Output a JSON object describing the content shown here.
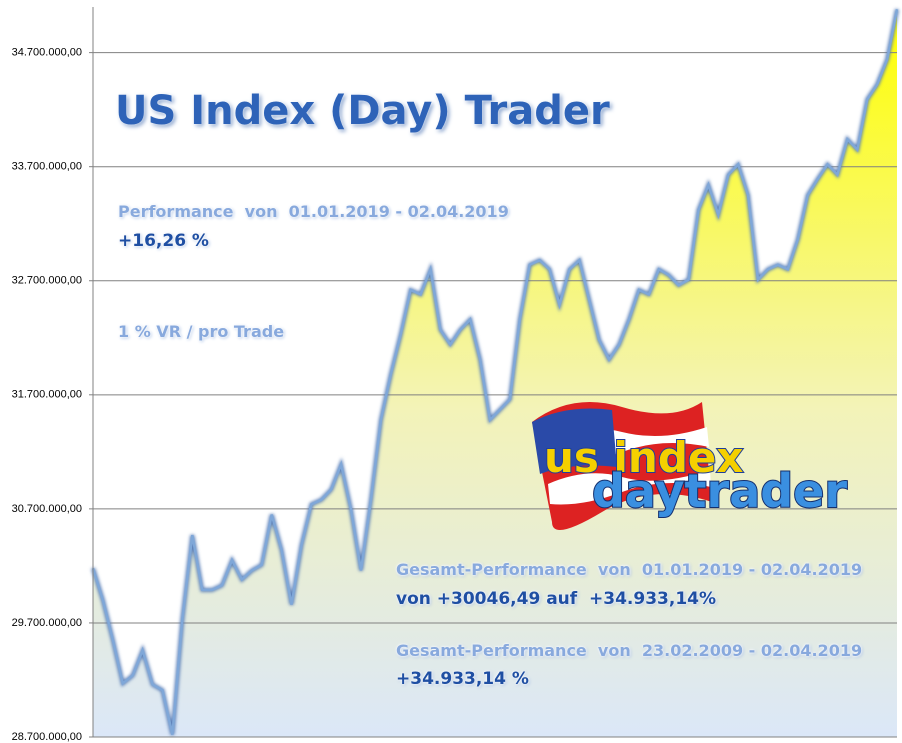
{
  "chart_data": {
    "type": "area",
    "title": "US Index (Day) Trader",
    "annotations": [
      "Performance  von  01.01.2019 - 02.04.2019",
      "+16,26 %",
      "1 % VR / pro Trade",
      "Gesamt-Performance  von  01.01.2019 - 02.04.2019",
      "von +30046,49 auf  +34.933,14%",
      "Gesamt-Performance  von  23.02.2009 - 02.04.2019",
      "+34.933,14 %"
    ],
    "logo": [
      "us index",
      "daytrader"
    ],
    "values": [
      30180000,
      29900000,
      29550000,
      29170000,
      29240000,
      29460000,
      29160000,
      29110000,
      28720000,
      29730000,
      30470000,
      29990000,
      29990000,
      30030000,
      30250000,
      30080000,
      30160000,
      30210000,
      30650000,
      30340000,
      29860000,
      30380000,
      30740000,
      30780000,
      30870000,
      31090000,
      30690000,
      30160000,
      30780000,
      31480000,
      31880000,
      32230000,
      32620000,
      32580000,
      32800000,
      32270000,
      32140000,
      32270000,
      32360000,
      32010000,
      31480000,
      31570000,
      31660000,
      32360000,
      32840000,
      32880000,
      32800000,
      32490000,
      32800000,
      32880000,
      32530000,
      32180000,
      32010000,
      32140000,
      32360000,
      32620000,
      32580000,
      32800000,
      32750000,
      32660000,
      32710000,
      33320000,
      33540000,
      33280000,
      33630000,
      33720000,
      33450000,
      32710000,
      32800000,
      32840000,
      32800000,
      33060000,
      33450000,
      33590000,
      33720000,
      33630000,
      33940000,
      33850000,
      34290000,
      34420000,
      34640000,
      35080000
    ],
    "color": "#7fa7d8",
    "fill_top": "#ffff00",
    "fill_bottom": "#dbe7f8",
    "ylim": [
      28700000,
      35100000
    ],
    "yticks": [
      {
        "value": 28700000,
        "label": "28.700.000,00"
      },
      {
        "value": 29700000,
        "label": "29.700.000,00"
      },
      {
        "value": 30700000,
        "label": "30.700.000,00"
      },
      {
        "value": 31700000,
        "label": "31.700.000,00"
      },
      {
        "value": 32700000,
        "label": "32.700.000,00"
      },
      {
        "value": 33700000,
        "label": "33.700.000,00"
      },
      {
        "value": 34700000,
        "label": "34.700.000,00"
      }
    ],
    "grid": true
  }
}
